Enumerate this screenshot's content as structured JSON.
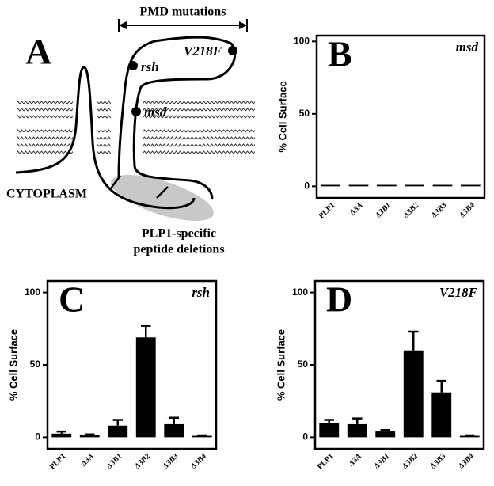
{
  "diagram": {
    "panel": "A",
    "range_label": "PMD mutations",
    "mutations": [
      "V218F",
      "rsh",
      "msd"
    ],
    "cytoplasm": "CYTOPLASM",
    "deletions": [
      "PLP1-specific",
      "peptide deletions"
    ]
  },
  "chart_data": [
    {
      "type": "bar",
      "panel": "B",
      "label": "msd",
      "ylabel": "% Cell Surface",
      "categories": [
        "PLP1",
        "Δ3A",
        "Δ3B1",
        "Δ3B2",
        "Δ3B3",
        "Δ3B4"
      ],
      "values": [
        1,
        1,
        1,
        1,
        1,
        1
      ],
      "color": "#000000",
      "ylim": [
        -8,
        104
      ],
      "yticks": [
        0,
        50,
        100
      ]
    },
    {
      "type": "bar",
      "panel": "C",
      "label": "rsh",
      "ylabel": "% Cell Surface",
      "categories": [
        "PLP1",
        "Δ3A",
        "Δ3B1",
        "Δ3B2",
        "Δ3B3",
        "Δ3B4"
      ],
      "values": [
        2.5,
        1.5,
        8,
        69,
        9,
        1
      ],
      "errors": [
        1.5,
        0.5,
        4,
        8,
        4.5,
        0.3
      ],
      "color": "#000000",
      "ylim": [
        -8,
        108
      ],
      "yticks": [
        0,
        50,
        100
      ]
    },
    {
      "type": "bar",
      "panel": "D",
      "label": "V218F",
      "ylabel": "% Cell Surface",
      "categories": [
        "PLP1",
        "Δ3A",
        "Δ3B1",
        "Δ3B2",
        "Δ3B3",
        "Δ3B4"
      ],
      "values": [
        10,
        9,
        4,
        60,
        31,
        1
      ],
      "errors": [
        2,
        4,
        1,
        13,
        8,
        0.3
      ],
      "color": "#000000",
      "ylim": [
        -8,
        108
      ],
      "yticks": [
        0,
        50,
        100
      ]
    }
  ]
}
